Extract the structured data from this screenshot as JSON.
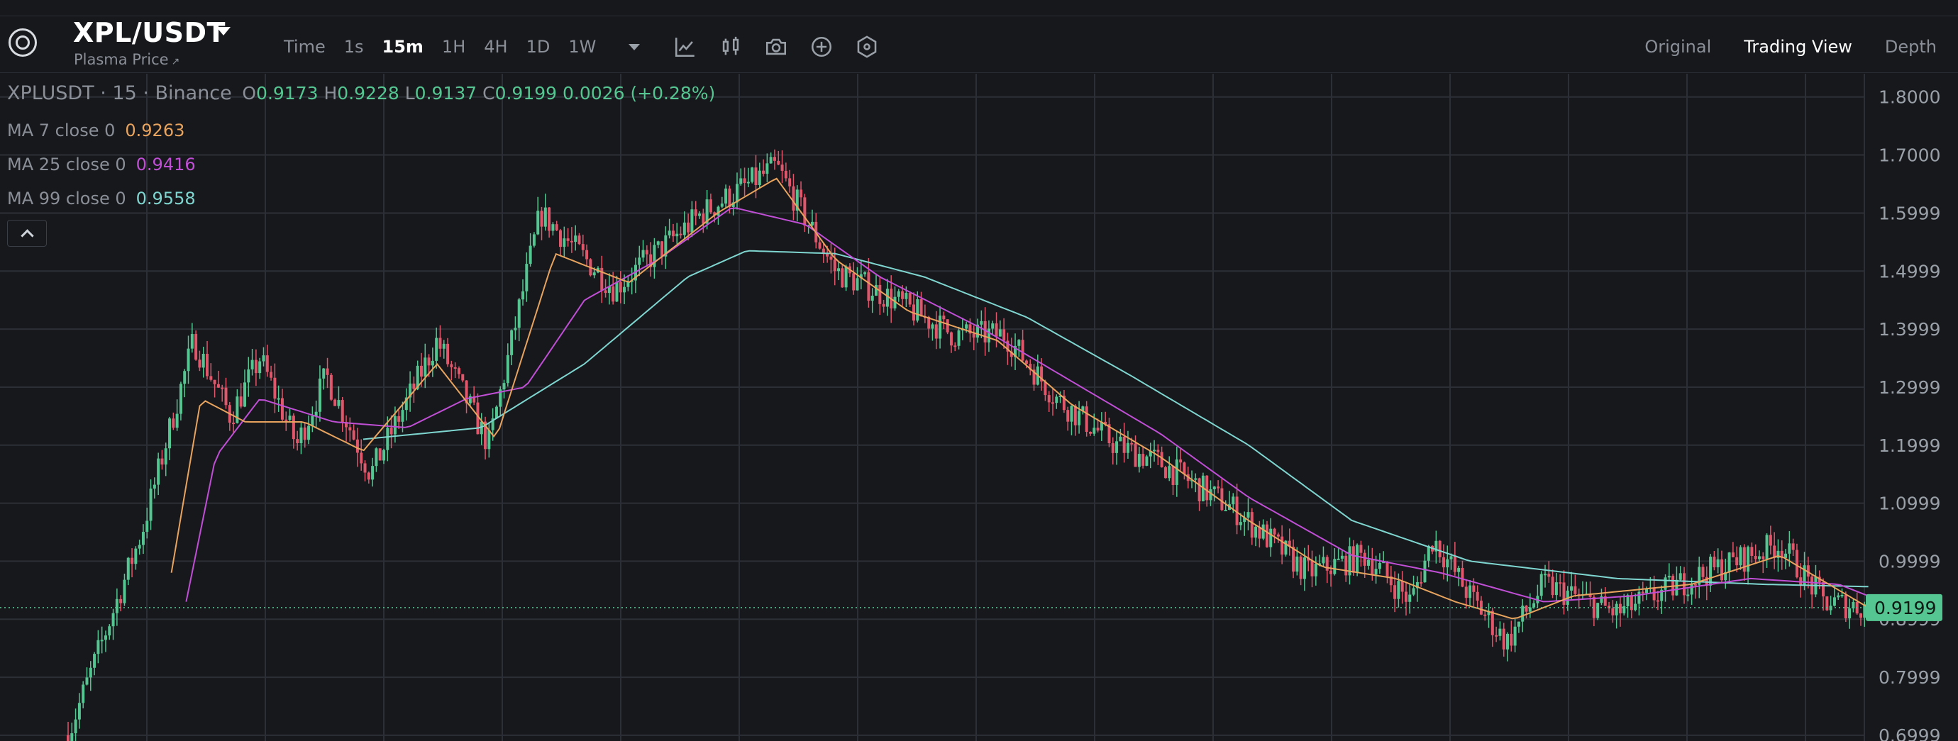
{
  "header": {
    "pair": "XPL/USDT",
    "subtitle": "Plasma Price",
    "subtitle_link": "↗",
    "intervals": [
      "Time",
      "1s",
      "15m",
      "1H",
      "4H",
      "1D",
      "1W"
    ],
    "active_interval": "15m",
    "tools": [
      "indicator-icon",
      "chart-type-icon",
      "camera-icon",
      "add-circle-icon",
      "settings-hex-icon"
    ],
    "views": [
      "Original",
      "Trading View",
      "Depth"
    ],
    "active_view": "Trading View"
  },
  "legend": {
    "symbol": "XPLUSDT · 15 · Binance",
    "o_label": "O",
    "o": "0.9173",
    "h_label": "H",
    "h": "0.9228",
    "l_label": "L",
    "l": "0.9137",
    "c_label": "C",
    "c": "0.9199",
    "change": "0.0026 (+0.28%)"
  },
  "ma": [
    {
      "label": "MA 7 close 0",
      "value": "0.9263",
      "color": "#e8a45e"
    },
    {
      "label": "MA 25 close 0",
      "value": "0.9416",
      "color": "#c04fd6"
    },
    {
      "label": "MA 99 close 0",
      "value": "0.9558",
      "color": "#7fd6d0"
    }
  ],
  "colors": {
    "up": "#55c691",
    "down": "#e0566a",
    "grid": "#2c2f36",
    "price_line": "#55c691"
  },
  "chart_data": {
    "type": "candlestick",
    "y_ticks": [
      "1.8000",
      "1.7000",
      "1.5999",
      "1.4999",
      "1.3999",
      "1.2999",
      "1.1999",
      "1.0999",
      "0.9999",
      "0.8999",
      "0.7999",
      "0.6999"
    ],
    "ylim": [
      0.69,
      1.84
    ],
    "last_price": "0.9199",
    "last_price_value": 0.9199,
    "price_path": [
      [
        0,
        0.7
      ],
      [
        0.05,
        1.05
      ],
      [
        0.085,
        1.38
      ],
      [
        0.11,
        1.25
      ],
      [
        0.13,
        1.35
      ],
      [
        0.155,
        1.2
      ],
      [
        0.175,
        1.32
      ],
      [
        0.205,
        1.15
      ],
      [
        0.25,
        1.38
      ],
      [
        0.285,
        1.2
      ],
      [
        0.32,
        1.6
      ],
      [
        0.37,
        1.47
      ],
      [
        0.43,
        1.6
      ],
      [
        0.48,
        1.68
      ],
      [
        0.52,
        1.5
      ],
      [
        0.56,
        1.45
      ],
      [
        0.6,
        1.39
      ],
      [
        0.635,
        1.39
      ],
      [
        0.67,
        1.28
      ],
      [
        0.71,
        1.2
      ],
      [
        0.74,
        1.17
      ],
      [
        0.79,
        1.09
      ],
      [
        0.84,
        0.98
      ],
      [
        0.88,
        1.01
      ],
      [
        0.91,
        0.93
      ],
      [
        0.925,
        1.04
      ],
      [
        0.95,
        0.94
      ],
      [
        0.975,
        0.86
      ],
      [
        1.0,
        0.96
      ],
      [
        1.05,
        0.91
      ],
      [
        1.1,
        0.97
      ],
      [
        1.16,
        1.03
      ],
      [
        1.19,
        0.93
      ],
      [
        1.22,
        0.92
      ]
    ],
    "ma7_path": [
      [
        0.07,
        0.98
      ],
      [
        0.09,
        1.28
      ],
      [
        0.12,
        1.24
      ],
      [
        0.16,
        1.24
      ],
      [
        0.2,
        1.19
      ],
      [
        0.25,
        1.34
      ],
      [
        0.29,
        1.21
      ],
      [
        0.33,
        1.53
      ],
      [
        0.38,
        1.48
      ],
      [
        0.44,
        1.6
      ],
      [
        0.48,
        1.66
      ],
      [
        0.52,
        1.52
      ],
      [
        0.57,
        1.43
      ],
      [
        0.63,
        1.38
      ],
      [
        0.68,
        1.27
      ],
      [
        0.74,
        1.18
      ],
      [
        0.8,
        1.07
      ],
      [
        0.85,
        0.99
      ],
      [
        0.9,
        0.97
      ],
      [
        0.94,
        0.93
      ],
      [
        0.98,
        0.9
      ],
      [
        1.02,
        0.94
      ],
      [
        1.1,
        0.96
      ],
      [
        1.16,
        1.01
      ],
      [
        1.22,
        0.92
      ]
    ],
    "ma25_path": [
      [
        0.08,
        0.93
      ],
      [
        0.1,
        1.18
      ],
      [
        0.13,
        1.28
      ],
      [
        0.18,
        1.24
      ],
      [
        0.23,
        1.23
      ],
      [
        0.27,
        1.28
      ],
      [
        0.31,
        1.3
      ],
      [
        0.35,
        1.45
      ],
      [
        0.4,
        1.52
      ],
      [
        0.45,
        1.61
      ],
      [
        0.5,
        1.58
      ],
      [
        0.55,
        1.49
      ],
      [
        0.62,
        1.4
      ],
      [
        0.68,
        1.31
      ],
      [
        0.74,
        1.22
      ],
      [
        0.8,
        1.11
      ],
      [
        0.87,
        1.01
      ],
      [
        0.93,
        0.98
      ],
      [
        1.0,
        0.93
      ],
      [
        1.06,
        0.94
      ],
      [
        1.14,
        0.97
      ],
      [
        1.2,
        0.96
      ],
      [
        1.22,
        0.94
      ]
    ],
    "ma99_path": [
      [
        0.2,
        1.21
      ],
      [
        0.28,
        1.23
      ],
      [
        0.35,
        1.34
      ],
      [
        0.42,
        1.49
      ],
      [
        0.46,
        1.535
      ],
      [
        0.52,
        1.53
      ],
      [
        0.58,
        1.49
      ],
      [
        0.65,
        1.42
      ],
      [
        0.72,
        1.32
      ],
      [
        0.8,
        1.2
      ],
      [
        0.87,
        1.07
      ],
      [
        0.95,
        1.0
      ],
      [
        1.05,
        0.97
      ],
      [
        1.15,
        0.96
      ],
      [
        1.22,
        0.956
      ]
    ]
  }
}
